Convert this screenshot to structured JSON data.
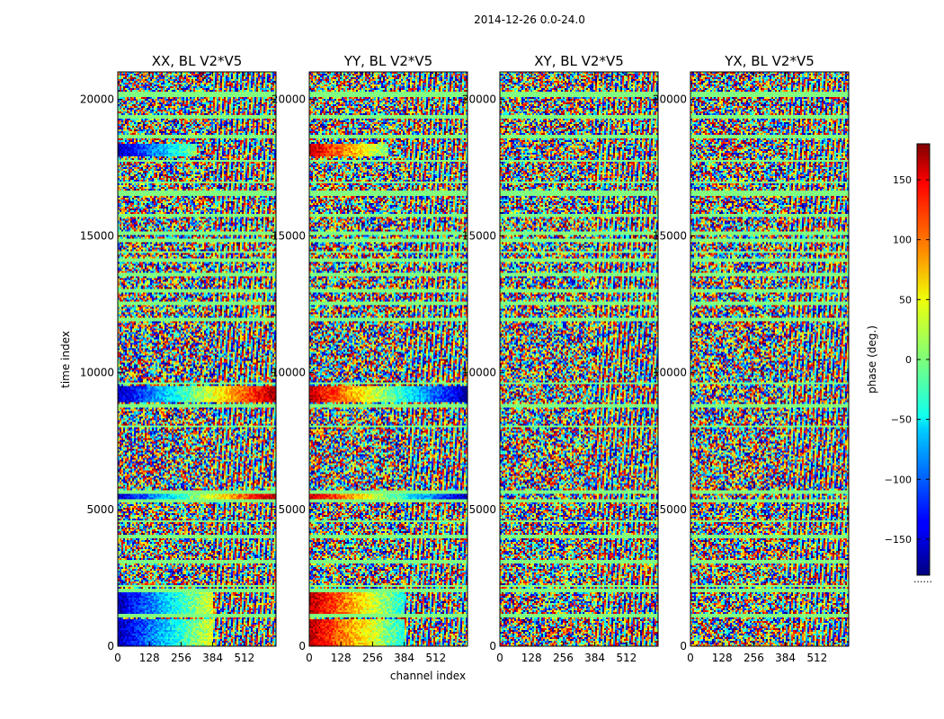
{
  "chart_data": {
    "type": "heatmap",
    "suptitle": "2014-12-26 0.0-24.0",
    "xlabel": "channel index",
    "ylabel": "time index",
    "xlim": [
      0,
      640
    ],
    "ylim": [
      0,
      21000
    ],
    "xticks": [
      "0",
      "128",
      "256",
      "384",
      "512"
    ],
    "yticks": [
      "0",
      "5000",
      "10000",
      "15000",
      "20000"
    ],
    "colorbar": {
      "label": "phase (deg.)",
      "range": [
        -180,
        180
      ],
      "ticks": [
        "150",
        "100",
        "50",
        "0",
        "−50",
        "−100",
        "−150"
      ],
      "colormap": "jet",
      "dots": "......"
    },
    "panels": [
      {
        "title": "XX, BL V2*V5",
        "pol": "XX"
      },
      {
        "title": "YY, BL V2*V5",
        "pol": "YY"
      },
      {
        "title": "XY, BL V2*V5",
        "pol": "XY"
      },
      {
        "title": "YX, BL V2*V5",
        "pol": "YX"
      }
    ],
    "flagged_time_bands": [
      [
        20100,
        20250
      ],
      [
        19300,
        19400
      ],
      [
        18600,
        18700
      ],
      [
        17700,
        17800
      ],
      [
        16900,
        17000
      ],
      [
        16500,
        16650
      ],
      [
        15700,
        15800
      ],
      [
        15050,
        15150
      ],
      [
        14750,
        14900
      ],
      [
        14350,
        14450
      ],
      [
        14050,
        14150
      ],
      [
        13550,
        13650
      ],
      [
        12950,
        13050
      ],
      [
        12500,
        12600
      ],
      [
        11900,
        12000
      ],
      [
        9550,
        9650
      ],
      [
        8750,
        8850
      ],
      [
        8000,
        8100
      ],
      [
        5600,
        5700
      ],
      [
        5250,
        5350
      ],
      [
        4500,
        4600
      ],
      [
        3950,
        4050
      ],
      [
        3050,
        3150
      ],
      [
        2150,
        2250
      ],
      [
        2000,
        2100
      ],
      [
        1050,
        1150
      ]
    ],
    "coherent_segments": [
      {
        "t": [
          8900,
          9500
        ],
        "ch": [
          0,
          640
        ],
        "pols": [
          "XX",
          "YY"
        ]
      },
      {
        "t": [
          5400,
          5550
        ],
        "ch": [
          0,
          640
        ],
        "pols": [
          "XX",
          "YY"
        ]
      },
      {
        "t": [
          17900,
          18400
        ],
        "ch": [
          0,
          320
        ],
        "pols": [
          "XX",
          "YY"
        ]
      },
      {
        "t": [
          1200,
          2000
        ],
        "ch": [
          0,
          384
        ],
        "pols": [
          "XX",
          "YY"
        ]
      },
      {
        "t": [
          0,
          1000
        ],
        "ch": [
          0,
          384
        ],
        "pols": [
          "XX",
          "YY"
        ]
      }
    ]
  }
}
